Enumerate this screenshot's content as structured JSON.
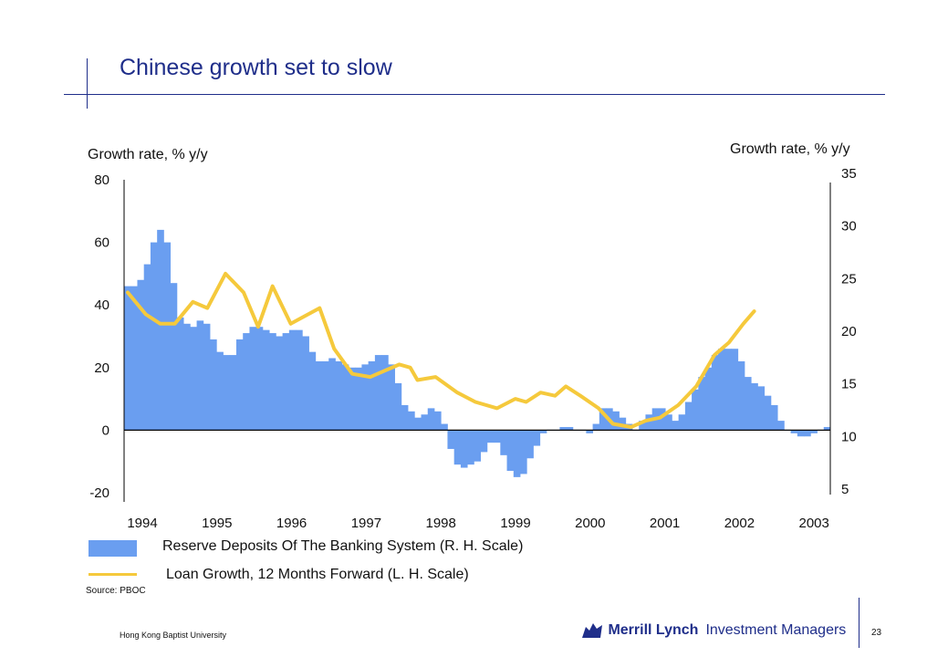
{
  "title": "Chinese growth set to slow",
  "left_axis_title": "Growth rate, % y/y",
  "right_axis_title": "Growth rate, % y/y",
  "legend": {
    "bars": "Reserve Deposits Of The Banking System (R. H. Scale)",
    "line": "Loan Growth, 12 Months Forward (L. H. Scale)"
  },
  "source": "Source:  PBOC",
  "footer": {
    "left": "Hong Kong Baptist University",
    "page": "23",
    "logo_brand": "Merrill Lynch",
    "logo_sub": "Investment Managers"
  },
  "colors": {
    "bars": "#6a9ef0",
    "line": "#f5c93c",
    "title": "#1f2e8a"
  },
  "chart_data": {
    "type": "bar+line",
    "years": [
      "1994",
      "1995",
      "1996",
      "1997",
      "1998",
      "1999",
      "2000",
      "2001",
      "2002",
      "2003"
    ],
    "left_axis": {
      "ticks": [
        "80",
        "60",
        "40",
        "20",
        "0",
        "-20"
      ],
      "ylim": [
        -20,
        80
      ]
    },
    "right_axis": {
      "ticks": [
        "35",
        "30",
        "25",
        "20",
        "15",
        "10",
        "5"
      ],
      "ylim": [
        4,
        35
      ]
    },
    "bar_series": {
      "name": "Reserve Deposits Of The Banking System (R. H. Scale)",
      "axis": "right",
      "x_start": 1994.0,
      "x_step": 0.0833,
      "values": [
        46,
        46,
        48,
        53,
        60,
        64,
        60,
        47,
        36,
        34,
        33,
        35,
        34,
        29,
        25,
        24,
        24,
        29,
        31,
        33,
        33,
        32,
        31,
        30,
        31,
        32,
        32,
        30,
        25,
        22,
        22,
        23,
        22,
        21,
        20,
        20,
        21,
        22,
        24,
        24,
        21,
        15,
        8,
        6,
        4,
        5,
        7,
        6,
        2,
        -6,
        -11,
        -12,
        -11,
        -10,
        -7,
        -4,
        -4,
        -8,
        -13,
        -15,
        -14,
        -9,
        -5,
        -1,
        0,
        0,
        1,
        1,
        0,
        0,
        -1,
        2,
        7,
        7,
        6,
        4,
        2,
        0,
        3,
        5,
        7,
        7,
        5,
        3,
        5,
        9,
        13,
        17,
        20,
        24,
        26,
        26,
        26,
        22,
        17,
        15,
        14,
        11,
        8,
        3,
        0,
        -1,
        -2,
        -2,
        -1,
        0,
        1
      ],
      "baseline_right": 10
    },
    "line_series": {
      "name": "Loan Growth, 12 Months Forward (L. H. Scale)",
      "axis": "left",
      "points": [
        [
          1994.05,
          44
        ],
        [
          1994.3,
          37
        ],
        [
          1994.5,
          34
        ],
        [
          1994.7,
          34
        ],
        [
          1994.95,
          41
        ],
        [
          1995.15,
          39
        ],
        [
          1995.4,
          50
        ],
        [
          1995.65,
          44
        ],
        [
          1995.85,
          33
        ],
        [
          1996.05,
          46
        ],
        [
          1996.3,
          34
        ],
        [
          1996.7,
          39
        ],
        [
          1996.9,
          26
        ],
        [
          1997.15,
          18
        ],
        [
          1997.4,
          17
        ],
        [
          1997.6,
          19
        ],
        [
          1997.8,
          21
        ],
        [
          1997.95,
          20
        ],
        [
          1998.05,
          16
        ],
        [
          1998.3,
          17
        ],
        [
          1998.6,
          12
        ],
        [
          1998.85,
          9
        ],
        [
          1999.15,
          7
        ],
        [
          1999.4,
          10
        ],
        [
          1999.55,
          9
        ],
        [
          1999.75,
          12
        ],
        [
          1999.95,
          11
        ],
        [
          2000.1,
          14
        ],
        [
          2000.3,
          11
        ],
        [
          2000.55,
          7
        ],
        [
          2000.75,
          2
        ],
        [
          2001.0,
          1
        ],
        [
          2001.2,
          3
        ],
        [
          2001.4,
          4
        ],
        [
          2001.65,
          8
        ],
        [
          2001.9,
          14
        ],
        [
          2002.15,
          24
        ],
        [
          2002.35,
          28
        ],
        [
          2002.55,
          34
        ],
        [
          2002.7,
          38
        ]
      ]
    }
  }
}
